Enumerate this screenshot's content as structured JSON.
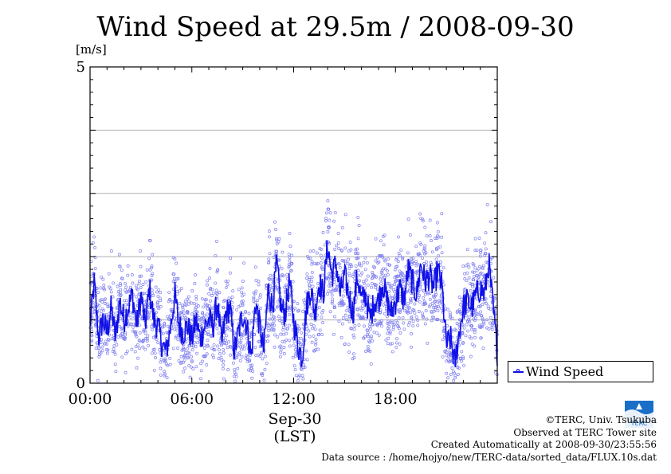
{
  "chart_data": {
    "type": "line",
    "title": "Wind Speed at 29.5m / 2008-09-30",
    "ylabel": "[m/s]",
    "xlabel_lines": [
      "Sep-30",
      "(LST)"
    ],
    "x_unit": "hours (LST)",
    "xlim": [
      0,
      24
    ],
    "ylim": [
      0,
      5
    ],
    "yticks": [
      0,
      5
    ],
    "ygrid": [
      1,
      2,
      3,
      4
    ],
    "xticks": [
      {
        "value": 0,
        "label": "00:00"
      },
      {
        "value": 6,
        "label": "06:00"
      },
      {
        "value": 12,
        "label": "12:00"
      },
      {
        "value": 18,
        "label": "18:00"
      }
    ],
    "legend": {
      "position": "bottom-right",
      "entries": [
        "Wind Speed"
      ]
    },
    "color": "#1010e8",
    "scatter_color": "#8080f0",
    "series": [
      {
        "name": "Wind Speed",
        "x": [
          0,
          0.25,
          0.5,
          0.75,
          1,
          1.25,
          1.5,
          1.75,
          2,
          2.25,
          2.5,
          2.75,
          3,
          3.25,
          3.5,
          3.75,
          4,
          4.25,
          4.5,
          4.75,
          5,
          5.25,
          5.5,
          5.75,
          6,
          6.25,
          6.5,
          6.75,
          7,
          7.25,
          7.5,
          7.75,
          8,
          8.25,
          8.5,
          8.75,
          9,
          9.25,
          9.5,
          9.75,
          10,
          10.25,
          10.5,
          10.75,
          11,
          11.25,
          11.5,
          11.75,
          12,
          12.25,
          12.5,
          12.75,
          13,
          13.25,
          13.5,
          13.75,
          14,
          14.25,
          14.5,
          14.75,
          15,
          15.25,
          15.5,
          15.75,
          16,
          16.25,
          16.5,
          16.75,
          17,
          17.25,
          17.5,
          17.75,
          18,
          18.25,
          18.5,
          18.75,
          19,
          19.25,
          19.5,
          19.75,
          20,
          20.25,
          20.5,
          20.75,
          21,
          21.25,
          21.5,
          21.75,
          22,
          22.25,
          22.5,
          22.75,
          23,
          23.25,
          23.5,
          23.75
        ],
        "values": [
          0.9,
          1.6,
          0.7,
          1.0,
          0.8,
          1.2,
          0.7,
          1.3,
          1.0,
          1.2,
          1.4,
          0.9,
          1.4,
          0.9,
          1.5,
          1.0,
          0.9,
          0.6,
          0.5,
          0.9,
          1.4,
          0.9,
          0.8,
          0.9,
          0.7,
          1.0,
          0.7,
          0.9,
          1.0,
          0.9,
          1.3,
          0.6,
          1.1,
          1.2,
          0.5,
          0.8,
          1.1,
          0.9,
          0.4,
          1.3,
          0.9,
          0.5,
          1.5,
          1.2,
          1.9,
          1.2,
          1.1,
          1.6,
          1.0,
          0.6,
          0.4,
          1.2,
          1.5,
          1.1,
          1.6,
          1.4,
          2.2,
          1.7,
          1.9,
          1.4,
          1.7,
          1.4,
          1.1,
          1.7,
          1.3,
          1.4,
          1.0,
          1.3,
          1.3,
          1.6,
          1.3,
          1.1,
          1.3,
          1.5,
          1.3,
          1.8,
          1.6,
          1.4,
          1.9,
          1.6,
          1.7,
          1.5,
          1.8,
          1.5,
          0.6,
          0.7,
          0.3,
          0.8,
          1.2,
          1.3,
          1.2,
          1.4,
          1.5,
          1.4,
          1.9,
          1.2
        ]
      }
    ]
  },
  "legend_label": "Wind Speed",
  "credits": {
    "copyright": "©TERC, Univ. Tsukuba",
    "site": "Observed at TERC Tower site",
    "created": "Created Automatically at 2008-09-30/23:55:56",
    "source": "Data source : /home/hojyo/new/TERC-data/sorted_data/FLUX.10s.dat"
  },
  "logo_text": "TERC"
}
